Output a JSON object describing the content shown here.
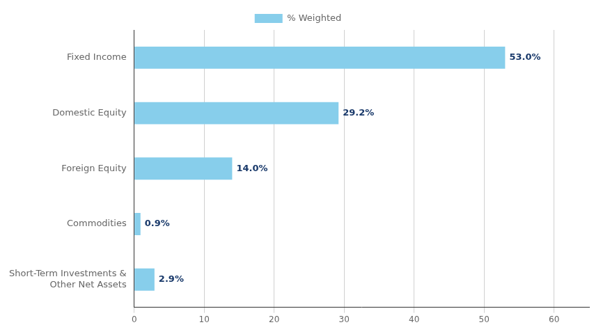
{
  "chart_data": {
    "type": "bar",
    "orientation": "horizontal",
    "categories": [
      "Fixed Income",
      "Domestic Equity",
      "Foreign Equity",
      "Commodities",
      "Short-Term Investments &\nOther Net Assets"
    ],
    "series": [
      {
        "name": "% Weighted",
        "color": "#87CEEB",
        "values": [
          53.0,
          29.2,
          14.0,
          0.9,
          2.9
        ],
        "value_labels": [
          "53.0%",
          "29.2%",
          "14.0%",
          "0.9%",
          "2.9%"
        ]
      }
    ],
    "xlim": [
      0,
      65
    ],
    "xticks": [
      0,
      10,
      20,
      30,
      40,
      50,
      60
    ],
    "grid": true,
    "legend": "top",
    "data_labels": true
  }
}
